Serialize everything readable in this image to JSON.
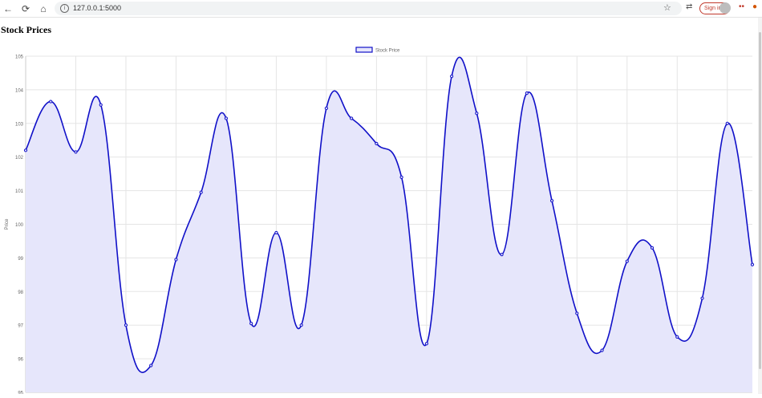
{
  "browser": {
    "url": "127.0.0.1:5000",
    "signin_label": "Sign in",
    "icons": {
      "back": "back-arrow-icon",
      "reload": "reload-icon",
      "home": "home-icon",
      "info": "info-icon",
      "star": "star-icon",
      "menu": "tab-search-icon",
      "extension": "extension-icon"
    }
  },
  "page": {
    "title": "Stock Prices"
  },
  "chart_data": {
    "type": "area",
    "title": "",
    "xlabel": "",
    "ylabel": "Price",
    "ylim": [
      95,
      105
    ],
    "yticks": [
      95,
      96,
      97,
      98,
      99,
      100,
      101,
      102,
      103,
      104,
      105
    ],
    "grid": true,
    "legend": "top-center",
    "line_color": "#1010c8",
    "fill_color": "#e6e6fb",
    "series": [
      {
        "name": "Stock Price",
        "values": [
          102.2,
          103.65,
          102.15,
          103.55,
          97.0,
          95.8,
          98.95,
          100.95,
          103.15,
          97.05,
          99.75,
          97.0,
          103.45,
          103.15,
          102.4,
          101.4,
          96.45,
          104.4,
          103.3,
          99.1,
          103.9,
          100.7,
          97.35,
          96.25,
          98.9,
          99.3,
          96.65,
          97.8,
          103.0,
          98.8
        ]
      }
    ]
  }
}
